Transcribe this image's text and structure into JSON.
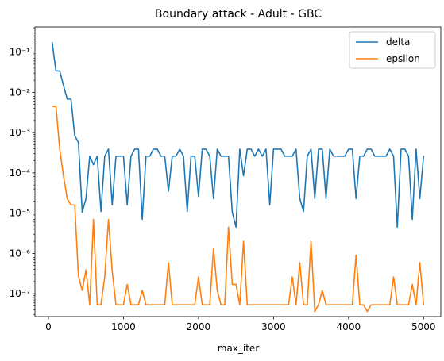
{
  "chart_data": {
    "type": "line",
    "title": "Boundary attack - Adult - GBC",
    "xlabel": "max_iter",
    "ylabel": "",
    "yscale": "log",
    "xlim": [
      -180,
      5230
    ],
    "ylim": [
      2.7e-08,
      0.42
    ],
    "grid": false,
    "legend_position": "top-right",
    "x_ticks": [
      0,
      1000,
      2000,
      3000,
      4000,
      5000
    ],
    "x_tick_labels": [
      "0",
      "1000",
      "2000",
      "3000",
      "4000",
      "5000"
    ],
    "y_ticks": [
      1e-07,
      1e-06,
      1e-05,
      0.0001,
      0.001,
      0.01,
      0.1
    ],
    "y_tick_labels": [
      "10⁻⁷",
      "10⁻⁶",
      "10⁻⁵",
      "10⁻⁴",
      "10⁻³",
      "10⁻²",
      "10⁻¹"
    ],
    "x": [
      50,
      100,
      150,
      200,
      250,
      300,
      350,
      400,
      450,
      500,
      550,
      600,
      650,
      700,
      750,
      800,
      850,
      900,
      950,
      1000,
      1050,
      1100,
      1150,
      1200,
      1250,
      1300,
      1350,
      1400,
      1450,
      1500,
      1550,
      1600,
      1650,
      1700,
      1750,
      1800,
      1850,
      1900,
      1950,
      2000,
      2050,
      2100,
      2150,
      2200,
      2250,
      2300,
      2350,
      2400,
      2450,
      2500,
      2550,
      2600,
      2650,
      2700,
      2750,
      2800,
      2850,
      2900,
      2950,
      3000,
      3050,
      3100,
      3150,
      3200,
      3250,
      3300,
      3350,
      3400,
      3450,
      3500,
      3550,
      3600,
      3650,
      3700,
      3750,
      3800,
      3850,
      3900,
      3950,
      4000,
      4050,
      4100,
      4150,
      4200,
      4250,
      4300,
      4350,
      4400,
      4450,
      4500,
      4550,
      4600,
      4650,
      4700,
      4750,
      4800,
      4850,
      4900,
      4950,
      5000
    ],
    "series": [
      {
        "name": "delta",
        "color": "#1f77b4",
        "values": [
          0.17,
          0.034,
          0.034,
          0.015,
          0.0068,
          0.0068,
          0.00085,
          0.00056,
          1.05e-05,
          2.3e-05,
          0.00026,
          0.00016,
          0.00026,
          1.1e-05,
          0.00026,
          0.00039,
          1.6e-05,
          0.00026,
          0.00026,
          0.00026,
          1.6e-05,
          0.00026,
          0.00039,
          0.00039,
          7e-06,
          0.00026,
          0.00026,
          0.00039,
          0.00039,
          0.00026,
          0.00026,
          3.5e-05,
          0.00026,
          0.00026,
          0.00039,
          0.00026,
          1.1e-05,
          0.00026,
          0.00026,
          2.6e-05,
          0.00039,
          0.00039,
          0.00026,
          2.3e-05,
          0.00039,
          0.00026,
          0.00026,
          0.00026,
          1.05e-05,
          4.5e-06,
          0.00039,
          8.5e-05,
          0.00039,
          0.00039,
          0.00026,
          0.00039,
          0.00026,
          0.00039,
          1.6e-05,
          0.00039,
          0.00039,
          0.00039,
          0.00026,
          0.00026,
          0.00026,
          0.00039,
          2.3e-05,
          1.1e-05,
          0.00026,
          0.00039,
          2.3e-05,
          0.00039,
          0.00039,
          2.3e-05,
          0.00039,
          0.00026,
          0.00026,
          0.00026,
          0.00026,
          0.00039,
          0.00039,
          2.3e-05,
          0.00026,
          0.00026,
          0.00039,
          0.00039,
          0.00026,
          0.00026,
          0.00026,
          0.00026,
          0.00039,
          0.00026,
          4.5e-06,
          0.00039,
          0.00039,
          0.00026,
          7e-06,
          0.00039,
          2.3e-05,
          0.00026
        ]
      },
      {
        "name": "epsilon",
        "color": "#ff7f0e",
        "values": [
          0.0045,
          0.0045,
          0.00039,
          8.5e-05,
          2.3e-05,
          1.6e-05,
          1.6e-05,
          2.7e-07,
          1.2e-07,
          3.9e-07,
          5.3e-08,
          7e-06,
          5.3e-08,
          5.3e-08,
          2.6e-07,
          7e-06,
          3.6e-07,
          5.3e-08,
          5.3e-08,
          5.3e-08,
          1.7e-07,
          5.3e-08,
          5.3e-08,
          5.3e-08,
          1.2e-07,
          5.3e-08,
          5.3e-08,
          5.3e-08,
          5.3e-08,
          5.3e-08,
          5.3e-08,
          5.9e-07,
          5.3e-08,
          5.3e-08,
          5.3e-08,
          5.3e-08,
          5.3e-08,
          5.3e-08,
          5.3e-08,
          2.6e-07,
          5.3e-08,
          5.3e-08,
          5.3e-08,
          1.35e-06,
          1.2e-07,
          5.3e-08,
          5.3e-08,
          4.5e-06,
          1.7e-07,
          1.7e-07,
          5.3e-08,
          2e-06,
          5.3e-08,
          5.3e-08,
          5.3e-08,
          5.3e-08,
          5.3e-08,
          5.3e-08,
          5.3e-08,
          5.3e-08,
          5.3e-08,
          5.3e-08,
          5.3e-08,
          5.3e-08,
          2.6e-07,
          5.3e-08,
          5.9e-07,
          5.3e-08,
          5.3e-08,
          2e-06,
          3.6e-08,
          5.3e-08,
          1.2e-07,
          5.3e-08,
          5.3e-08,
          5.3e-08,
          5.3e-08,
          5.3e-08,
          5.3e-08,
          5.3e-08,
          5.3e-08,
          9e-07,
          5.3e-08,
          5.3e-08,
          3.6e-08,
          5.3e-08,
          5.3e-08,
          5.3e-08,
          5.3e-08,
          5.3e-08,
          5.3e-08,
          2.6e-07,
          5.3e-08,
          5.3e-08,
          5.3e-08,
          5.3e-08,
          1.7e-07,
          5.3e-08,
          5.9e-07,
          5.3e-08
        ]
      }
    ]
  }
}
